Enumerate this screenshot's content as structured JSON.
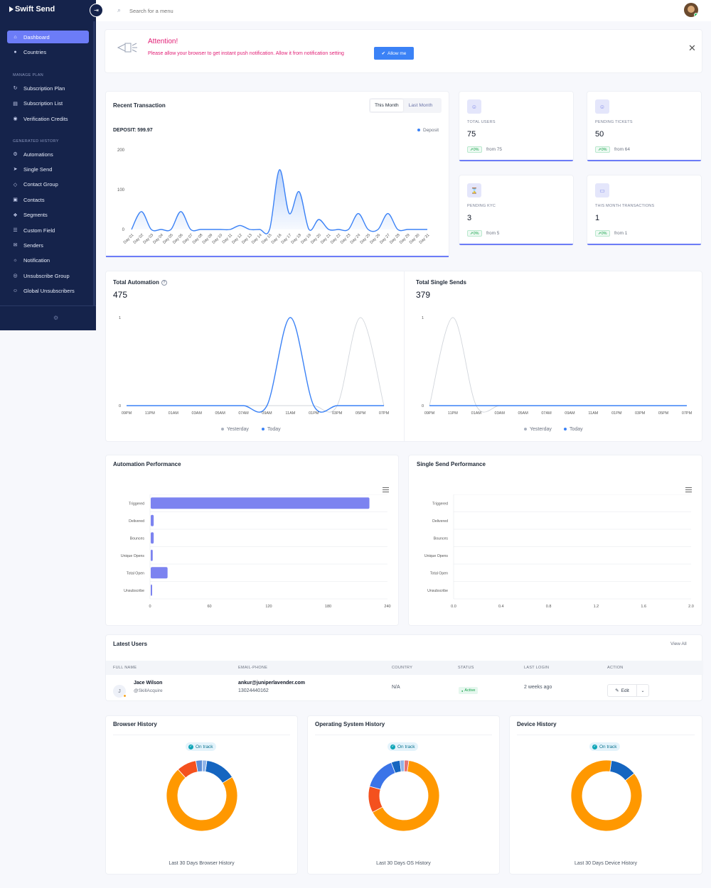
{
  "app": {
    "brand": "Swift Send"
  },
  "search": {
    "placeholder": "Search for a menu"
  },
  "sidebar": {
    "items_top": [
      {
        "label": "Dashboard",
        "icon": "home-icon",
        "active": true
      },
      {
        "label": "Countries",
        "icon": "globe-icon"
      }
    ],
    "section_manage": "MANAGE PLAN",
    "items_manage": [
      {
        "label": "Subscription Plan",
        "icon": "cycle-icon"
      },
      {
        "label": "Subscription List",
        "icon": "list-icon"
      },
      {
        "label": "Verification Credits",
        "icon": "coins-icon"
      }
    ],
    "section_generated": "GENERATED HISTORY",
    "items_generated": [
      {
        "label": "Automations",
        "icon": "automation-icon"
      },
      {
        "label": "Single Send",
        "icon": "send-icon"
      },
      {
        "label": "Contact Group",
        "icon": "tag-icon"
      },
      {
        "label": "Contacts",
        "icon": "contact-book-icon"
      },
      {
        "label": "Segments",
        "icon": "segments-icon"
      },
      {
        "label": "Custom Field",
        "icon": "fields-icon"
      },
      {
        "label": "Senders",
        "icon": "mail-icon"
      },
      {
        "label": "Notification",
        "icon": "sun-icon"
      },
      {
        "label": "Unsubscribe Group",
        "icon": "group-icon"
      },
      {
        "label": "Global Unsubscribers",
        "icon": "users-icon"
      }
    ]
  },
  "attention": {
    "title": "Attention!",
    "text": "Please allow your browser to get instant push notification. Allow it from notification setting",
    "allow_label": "Allow me"
  },
  "recent_transaction": {
    "title": "Recent Transaction",
    "tab_this_month": "This Month",
    "tab_last_month": "Last Month",
    "deposit_label": "DEPOSIT: 599.97",
    "legend": "Deposit"
  },
  "stats": [
    {
      "label": "TOTAL USERS",
      "value": "75",
      "badge": "0%",
      "from": "from 75",
      "icon": "user-icon"
    },
    {
      "label": "PENDING TICKETS",
      "value": "50",
      "badge": "0%",
      "from": "from 64",
      "icon": "user-icon"
    },
    {
      "label": "PENDING KYC",
      "value": "3",
      "badge": "0%",
      "from": "from 5",
      "icon": "hourglass-icon"
    },
    {
      "label": "THIS MONTH TRANSACTIONS",
      "value": "1",
      "badge": "0%",
      "from": "from 1",
      "icon": "card-icon"
    }
  ],
  "total_automation": {
    "title": "Total Automation",
    "value": "475",
    "legend_yesterday": "Yesterday",
    "legend_today": "Today"
  },
  "total_single_sends": {
    "title": "Total Single Sends",
    "value": "379",
    "legend_yesterday": "Yesterday",
    "legend_today": "Today"
  },
  "automation_performance": {
    "title": "Automation Performance"
  },
  "single_send_performance": {
    "title": "Single Send Performance"
  },
  "latest_users": {
    "title": "Latest Users",
    "view_all": "View All",
    "columns": [
      "FULL NAME",
      "EMAIL-PHONE",
      "COUNTRY",
      "STATUS",
      "LAST LOGIN",
      "ACTION"
    ],
    "rows": [
      {
        "initial": "J",
        "name": "Jace Wilson",
        "handle": "@SkillAcquire",
        "email": "ankur@juniperlavender.com",
        "phone": "13024440162",
        "country": "N/A",
        "status": "Active",
        "last_login": "2 weeks ago",
        "action": "Edit"
      }
    ]
  },
  "browser_history": {
    "title": "Browser History",
    "badge": "On track",
    "caption": "Last 30 Days Browser History"
  },
  "os_history": {
    "title": "Operating System History",
    "badge": "On track",
    "caption": "Last 30 Days OS History"
  },
  "device_history": {
    "title": "Device History",
    "badge": "On track",
    "caption": "Last 30 Days Device History"
  },
  "colors": {
    "accent": "#6c7cf7",
    "sidebar": "#15234b",
    "blue": "#3b82f6",
    "orange": "#ff9800",
    "red": "#f4511e"
  },
  "chart_data": [
    {
      "type": "area",
      "series": [
        {
          "name": "Deposit",
          "values": [
            0,
            45,
            0,
            0,
            0,
            45,
            0,
            0,
            0,
            0,
            0,
            10,
            0,
            0,
            0,
            150,
            40,
            95,
            0,
            25,
            0,
            0,
            0,
            40,
            0,
            0,
            40,
            0,
            0,
            0,
            0
          ]
        }
      ],
      "categories": [
        "Day 01",
        "Day 02",
        "Day 03",
        "Day 04",
        "Day 05",
        "Day 06",
        "Day 07",
        "Day 08",
        "Day 09",
        "Day 10",
        "Day 11",
        "Day 12",
        "Day 13",
        "Day 14",
        "Day 15",
        "Day 16",
        "Day 17",
        "Day 18",
        "Day 19",
        "Day 20",
        "Day 21",
        "Day 22",
        "Day 23",
        "Day 24",
        "Day 25",
        "Day 26",
        "Day 27",
        "Day 28",
        "Day 29",
        "Day 30",
        "Day 31"
      ],
      "yticks": [
        "200",
        "100",
        "0"
      ],
      "ylim": [
        0,
        200
      ]
    },
    {
      "type": "line",
      "categories": [
        "09PM",
        "11PM",
        "01AM",
        "03AM",
        "05AM",
        "07AM",
        "09AM",
        "11AM",
        "01PM",
        "03PM",
        "05PM",
        "07PM"
      ],
      "series": [
        {
          "name": "Yesterday",
          "values": [
            0,
            0,
            0,
            0,
            0,
            0,
            0,
            0,
            0,
            0,
            1,
            0
          ]
        },
        {
          "name": "Today",
          "values": [
            0,
            0,
            0,
            0,
            0,
            0,
            0,
            1,
            0,
            0,
            0,
            0
          ]
        }
      ],
      "yticks": [
        "1",
        "0"
      ],
      "ylim": [
        0,
        1
      ]
    },
    {
      "type": "line",
      "categories": [
        "09PM",
        "11PM",
        "01AM",
        "03AM",
        "05AM",
        "07AM",
        "09AM",
        "11AM",
        "01PM",
        "03PM",
        "05PM",
        "07PM"
      ],
      "series": [
        {
          "name": "Yesterday",
          "values": [
            0,
            1,
            0,
            0,
            0,
            0,
            0,
            0,
            0,
            0,
            0,
            0
          ]
        },
        {
          "name": "Today",
          "values": [
            0,
            0,
            0,
            0,
            0,
            0,
            0,
            0,
            0,
            0,
            0,
            0
          ]
        }
      ],
      "yticks": [
        "1",
        "0"
      ],
      "ylim": [
        0,
        1
      ]
    },
    {
      "type": "bar",
      "orientation": "horizontal",
      "categories": [
        "Triggered",
        "Delivered",
        "Bounces",
        "Unique Opens",
        "Total Open",
        "Unsubscribe"
      ],
      "values": [
        221,
        3,
        3,
        2,
        17,
        1
      ],
      "xticks": [
        "0",
        "60",
        "120",
        "180",
        "240"
      ],
      "xlim": [
        0,
        240
      ]
    },
    {
      "type": "bar",
      "orientation": "horizontal",
      "categories": [
        "Triggered",
        "Delivered",
        "Bounces",
        "Unique Opens",
        "Total Open",
        "Unsubscribe"
      ],
      "values": [
        0,
        0,
        0,
        0,
        0,
        0
      ],
      "xticks": [
        "0.0",
        "0.4",
        "0.8",
        "1.2",
        "1.6",
        "2.0"
      ],
      "xlim": [
        0,
        2
      ]
    },
    {
      "type": "pie",
      "donut": true,
      "slices": [
        {
          "value": 14,
          "color": "#1565c0"
        },
        {
          "value": 72,
          "color": "#ff9800"
        },
        {
          "value": 9,
          "color": "#f4511e"
        },
        {
          "value": 3,
          "color": "#5c8dd6"
        },
        {
          "value": 2,
          "color": "#90b4e8"
        }
      ]
    },
    {
      "type": "pie",
      "donut": true,
      "slices": [
        {
          "value": 65,
          "color": "#ff9800"
        },
        {
          "value": 12,
          "color": "#f4511e"
        },
        {
          "value": 15,
          "color": "#3b74e8"
        },
        {
          "value": 4,
          "color": "#1565c0"
        },
        {
          "value": 2,
          "color": "#90b4e8"
        },
        {
          "value": 2,
          "color": "#e57373"
        }
      ]
    },
    {
      "type": "pie",
      "donut": true,
      "slices": [
        {
          "value": 12,
          "color": "#1565c0"
        },
        {
          "value": 88,
          "color": "#ff9800"
        }
      ]
    }
  ]
}
